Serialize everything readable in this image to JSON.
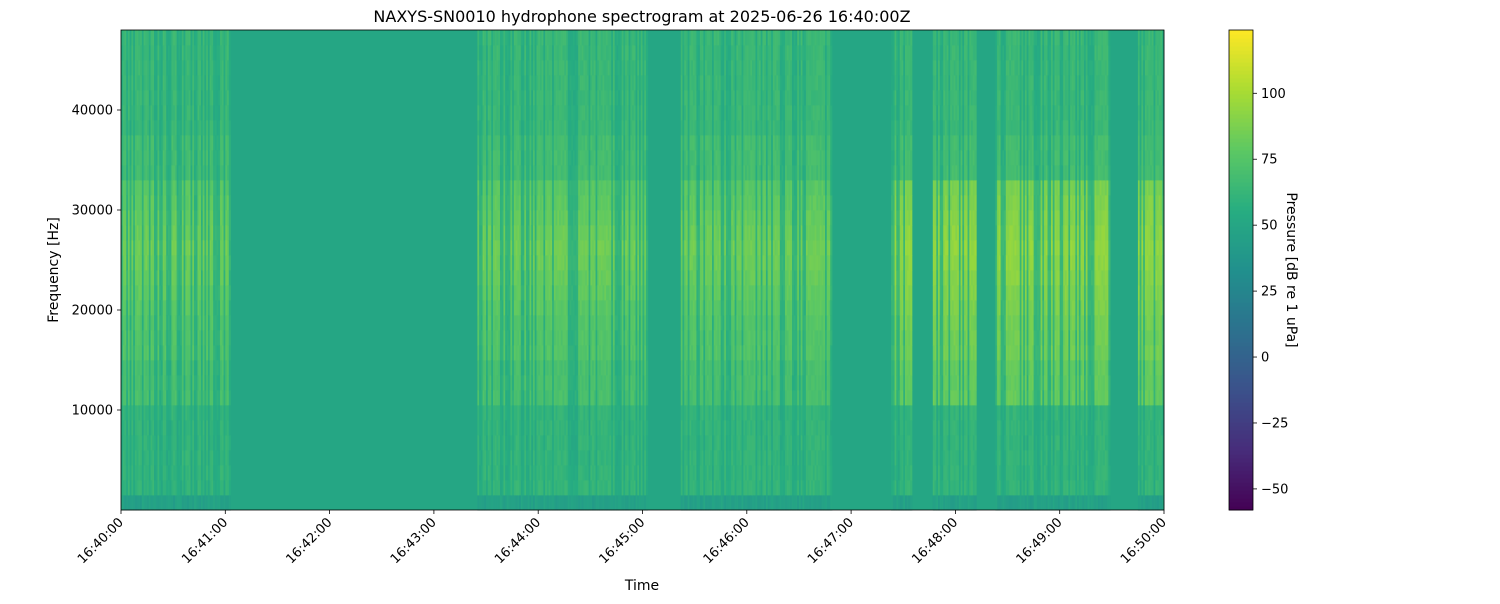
{
  "chart_data": {
    "type": "heatmap",
    "title": "NAXYS-SN0010 hydrophone spectrogram at 2025-06-26 16:40:00Z",
    "xlabel": "Time",
    "ylabel": "Frequency [Hz]",
    "x_range": [
      "16:40:00",
      "16:50:00"
    ],
    "x_ticks": [
      "16:40:00",
      "16:41:00",
      "16:42:00",
      "16:43:00",
      "16:44:00",
      "16:45:00",
      "16:46:00",
      "16:47:00",
      "16:48:00",
      "16:49:00",
      "16:50:00"
    ],
    "y_range": [
      0,
      48000
    ],
    "y_ticks": [
      10000,
      20000,
      30000,
      40000
    ],
    "y_tick_labels": [
      "10000",
      "20000",
      "30000",
      "40000"
    ],
    "colormap": "viridis",
    "colorbar": {
      "label": "Pressure [dB re 1 uPa]",
      "range": [
        -58,
        124
      ],
      "ticks": [
        -50,
        -25,
        0,
        25,
        50,
        75,
        100
      ],
      "tick_labels": [
        "−50",
        "−25",
        "0",
        "25",
        "50",
        "75",
        "100"
      ]
    },
    "segments_seconds": [
      {
        "start": 0,
        "end": 63,
        "level": "active"
      },
      {
        "start": 63,
        "end": 205,
        "level": "quiet"
      },
      {
        "start": 205,
        "end": 303,
        "level": "active"
      },
      {
        "start": 303,
        "end": 322,
        "level": "quiet"
      },
      {
        "start": 322,
        "end": 409,
        "level": "active"
      },
      {
        "start": 409,
        "end": 443,
        "level": "quiet"
      },
      {
        "start": 443,
        "end": 455,
        "level": "strong"
      },
      {
        "start": 455,
        "end": 467,
        "level": "quiet"
      },
      {
        "start": 467,
        "end": 492,
        "level": "strong"
      },
      {
        "start": 492,
        "end": 503,
        "level": "quiet"
      },
      {
        "start": 503,
        "end": 569,
        "level": "strong"
      },
      {
        "start": 569,
        "end": 585,
        "level": "quiet"
      },
      {
        "start": 585,
        "end": 600,
        "level": "strong"
      }
    ],
    "levels_db": {
      "background": 45,
      "quiet": 50,
      "low_band": 62,
      "active_mid": 75,
      "active_peak": 85,
      "strong_mid": 85,
      "strong_peak": 95,
      "upper_band": 65
    }
  }
}
